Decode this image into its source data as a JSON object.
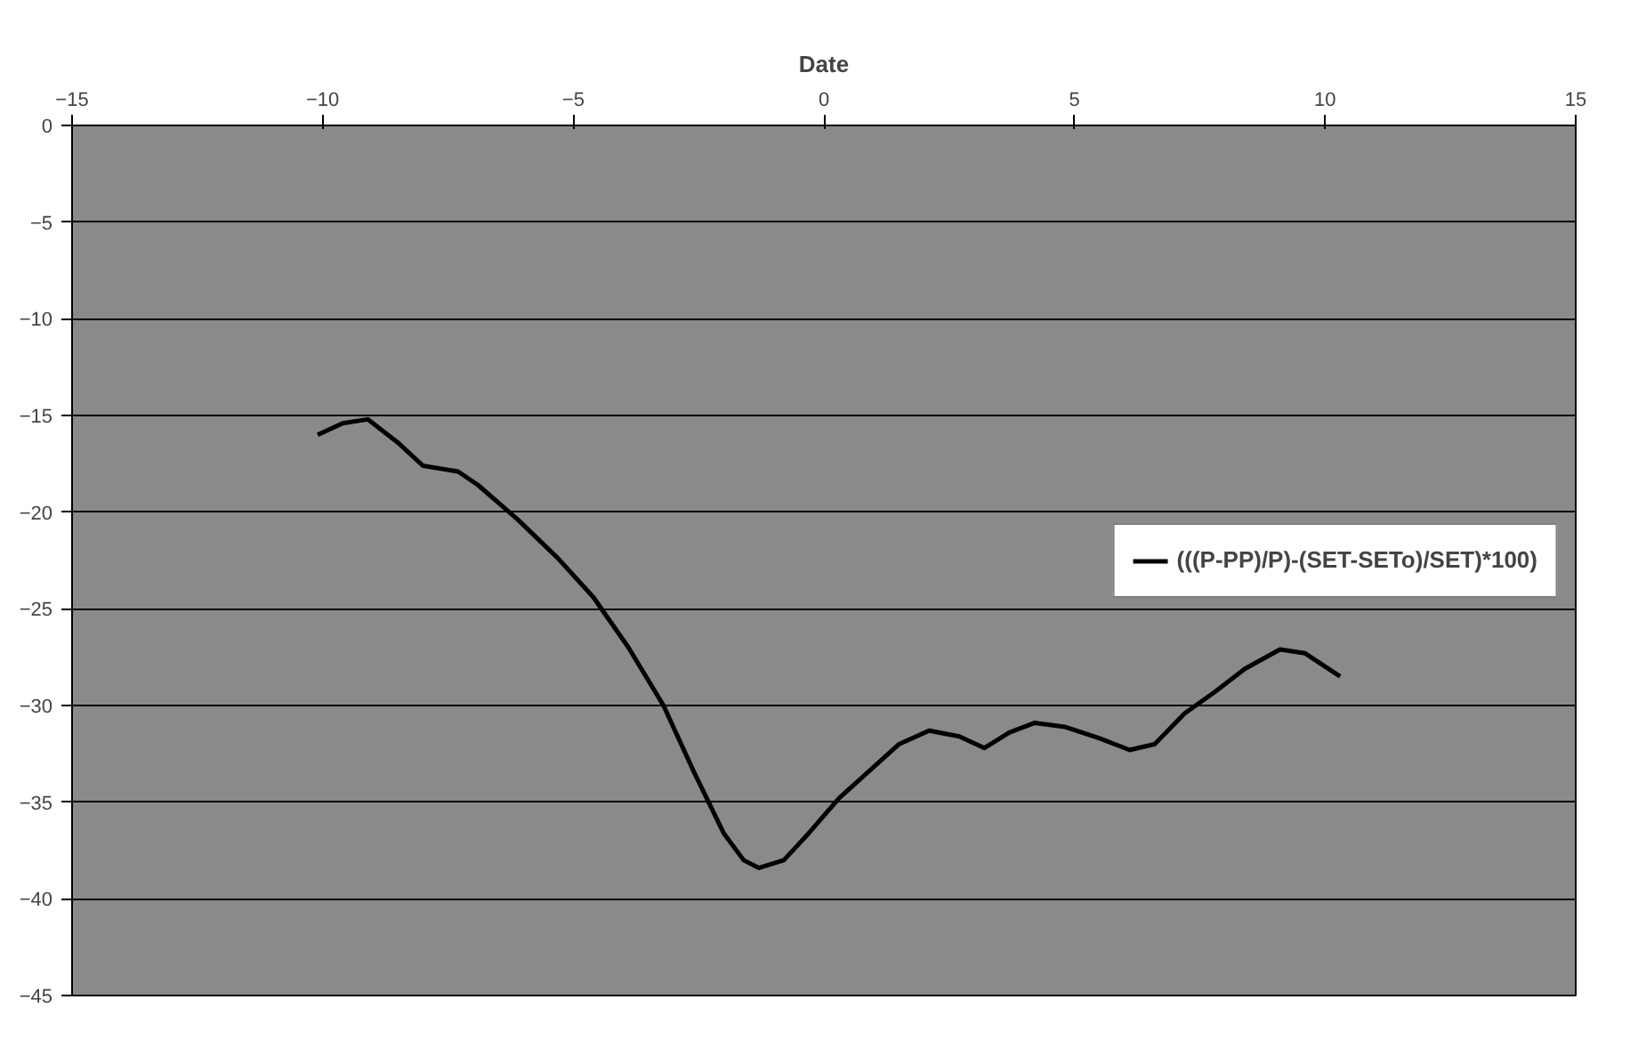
{
  "chart_data": {
    "type": "line",
    "xlabel": "Date",
    "x": [
      -10.1,
      -9.6,
      -9.1,
      -8.5,
      -8.0,
      -7.3,
      -6.9,
      -6.1,
      -5.3,
      -4.6,
      -3.9,
      -3.2,
      -2.6,
      -2.0,
      -1.6,
      -1.3,
      -0.8,
      -0.3,
      0.3,
      0.9,
      1.5,
      2.1,
      2.7,
      3.2,
      3.7,
      4.2,
      4.8,
      5.5,
      6.1,
      6.6,
      7.2,
      7.8,
      8.4,
      9.1,
      9.6,
      10.3
    ],
    "series": [
      {
        "name": "(((P-PP)/P)-(SET-SETo)/SET)*100)",
        "color": "#000000",
        "values": [
          -16.0,
          -15.4,
          -15.2,
          -16.4,
          -17.6,
          -17.9,
          -18.6,
          -20.4,
          -22.4,
          -24.4,
          -27.0,
          -30.0,
          -33.4,
          -36.6,
          -38.0,
          -38.4,
          -38.0,
          -36.6,
          -34.8,
          -33.4,
          -32.0,
          -31.3,
          -31.6,
          -32.2,
          -31.4,
          -30.9,
          -31.1,
          -31.7,
          -32.3,
          -32.0,
          -30.4,
          -29.3,
          -28.1,
          -27.1,
          -27.3,
          -28.5
        ]
      }
    ],
    "xlim": [
      -15,
      15
    ],
    "ylim": [
      -45,
      0
    ],
    "xticks": [
      -15,
      -10,
      -5,
      0,
      5,
      10,
      15
    ],
    "yticks": [
      0,
      -5,
      -10,
      -15,
      -20,
      -25,
      -30,
      -35,
      -40,
      -45
    ],
    "grid": "y",
    "legend": "right",
    "marker": "none",
    "line_style": "solid"
  }
}
